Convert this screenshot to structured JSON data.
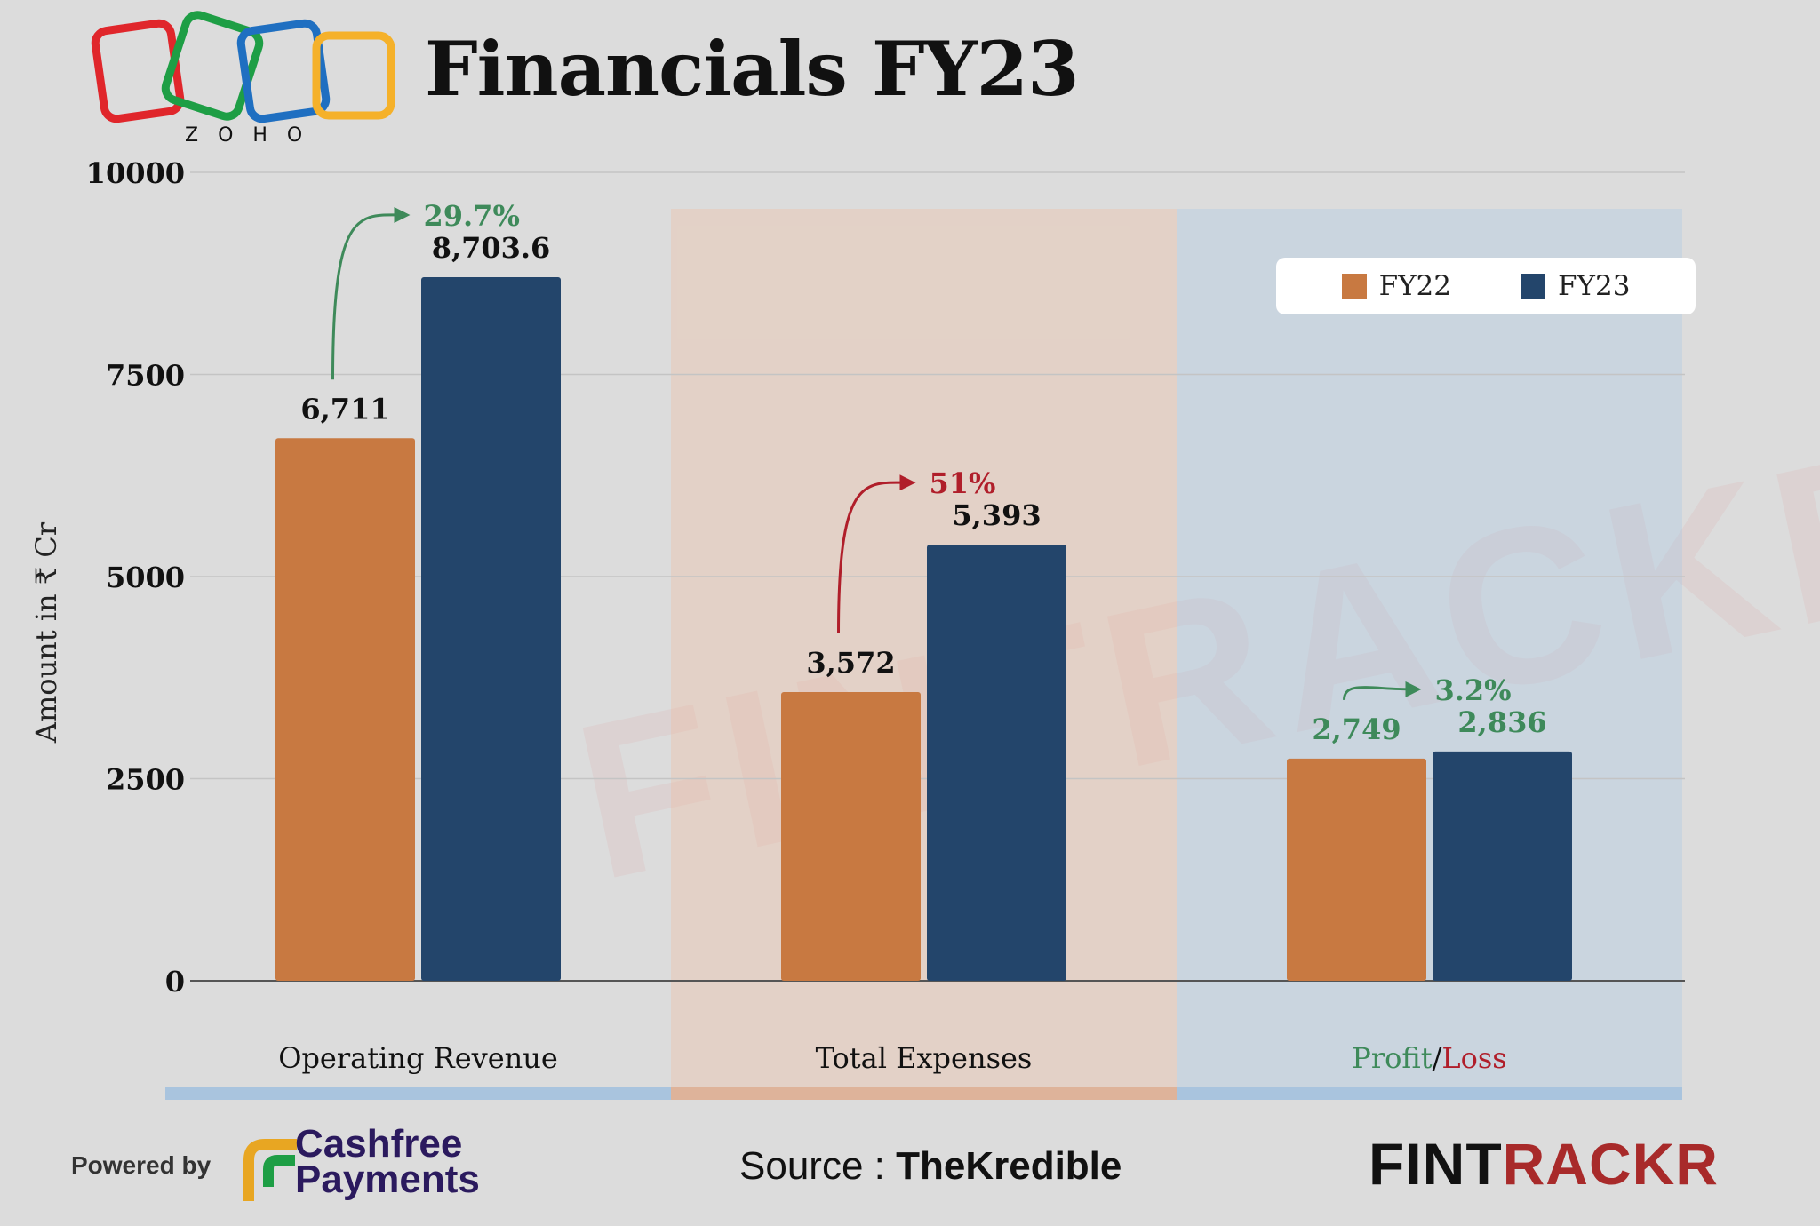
{
  "header": {
    "title": "Financials FY23",
    "logo_text": "ZOHO"
  },
  "watermark": "FINTRACKR",
  "legend": [
    {
      "label": "FY22",
      "color": "#c87941"
    },
    {
      "label": "FY23",
      "color": "#23456b"
    }
  ],
  "chart_data": {
    "type": "bar",
    "ylabel": "Amount in ₹ Cr",
    "ylim": [
      0,
      10000
    ],
    "yticks": [
      0,
      2500,
      5000,
      7500,
      10000
    ],
    "categories": [
      "Operating Revenue",
      "Total Expenses",
      "Profit/Loss"
    ],
    "series": [
      {
        "name": "FY22",
        "values": [
          6711,
          3572,
          2749
        ],
        "labels": [
          "6,711",
          "3,572",
          "2,749"
        ]
      },
      {
        "name": "FY23",
        "values": [
          8703.6,
          5393,
          2836
        ],
        "labels": [
          "8,703.6",
          "5,393",
          "2,836"
        ]
      }
    ],
    "growth": [
      {
        "text": "29.7%",
        "color": "#3e8a5a"
      },
      {
        "text": "51%",
        "color": "#b01e2a"
      },
      {
        "text": "3.2%",
        "color": "#3e8a5a"
      }
    ],
    "profit_loss_parts": {
      "profit": "Profit",
      "sep": "/",
      "loss": "Loss"
    },
    "grid": true,
    "legend_position": "top-right"
  },
  "footer": {
    "powered_by": "Powered by",
    "sponsor_line1": "Cashfree",
    "sponsor_line2": "Payments",
    "source_label": "Source : ",
    "source_name": "TheKredible",
    "brand_part1": "FINT",
    "brand_part2": "RACKR"
  },
  "colors": {
    "fy22": "#c87941",
    "fy23": "#23456b",
    "profit": "#3e8a5a",
    "loss": "#b01e2a",
    "band_revenue": "#a9c4de",
    "band_expenses": "#deb39a",
    "band_profit": "#a9c4de"
  }
}
